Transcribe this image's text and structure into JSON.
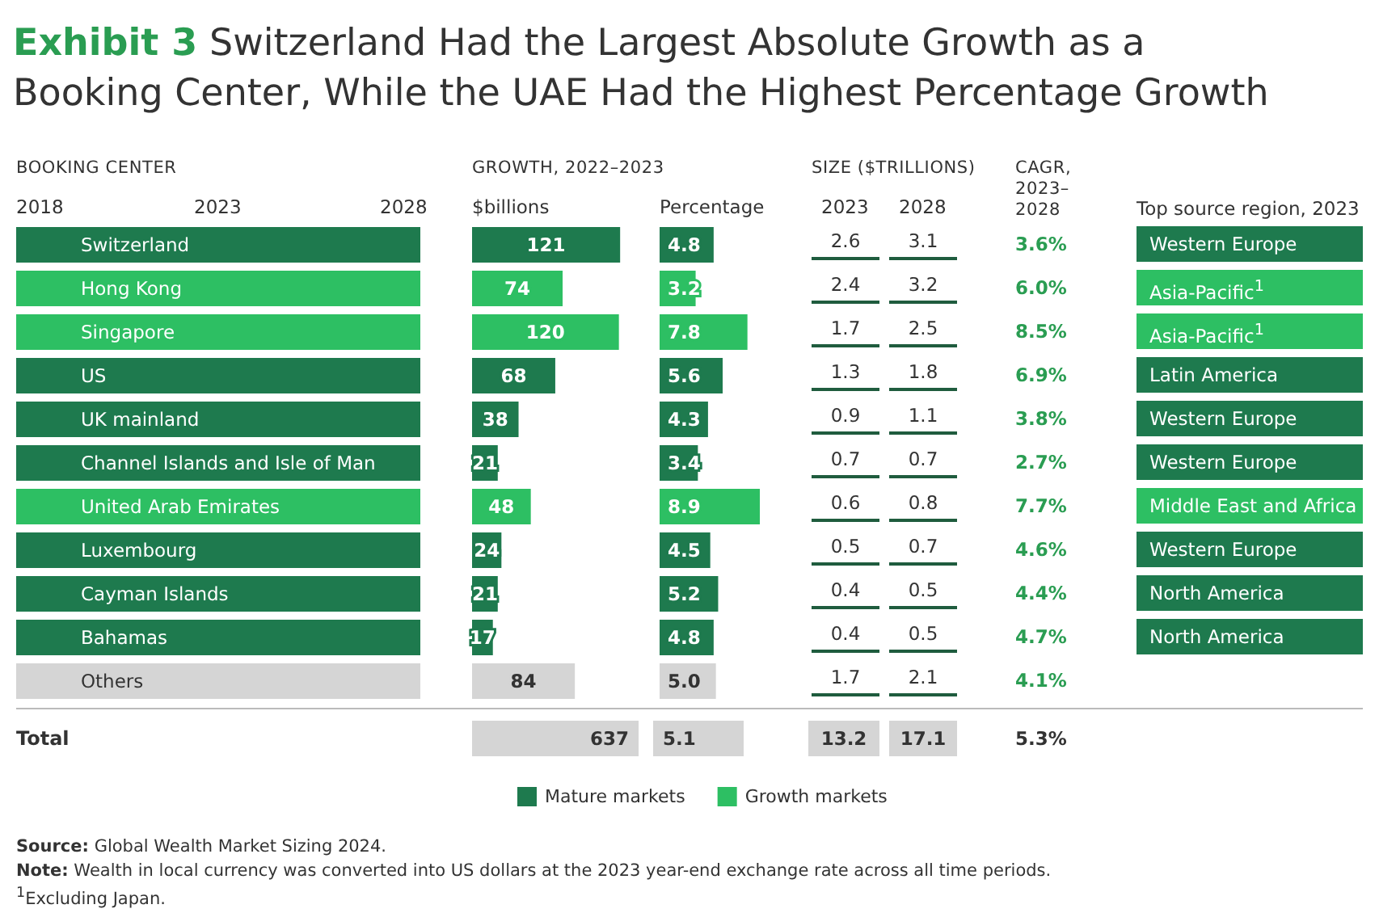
{
  "chart_data": [
    {
      "type": "bar",
      "orientation": "horizontal",
      "stacked": true,
      "title": "Exhibit 3 Switzerland Had the Largest Absolute Growth as a Booking Center, While the UAE Had the Highest Percentage Growth",
      "xlabel": "$billions",
      "annotations": [
        "BOOKING CENTER",
        "2018",
        "2023",
        "2028",
        "GROWTH, 2022–2023"
      ],
      "categories": [
        "Switzerland",
        "Hong Kong",
        "Singapore",
        "US",
        "UK mainland",
        "Channel Islands and Isle of Man",
        "United Arab Emirates",
        "Luxembourg",
        "Cayman Islands",
        "Bahamas",
        "Others"
      ],
      "series": [
        {
          "name": "Mature markets",
          "color": "#1e7a4e",
          "values": [
            121,
            null,
            null,
            68,
            38,
            21,
            null,
            24,
            21,
            17,
            null
          ]
        },
        {
          "name": "Growth markets",
          "color": "#2dbf63",
          "values": [
            null,
            74,
            120,
            null,
            null,
            null,
            48,
            null,
            null,
            null,
            null
          ]
        },
        {
          "color": "#d5d5d5",
          "values": [
            null,
            null,
            null,
            null,
            null,
            null,
            null,
            null,
            null,
            null,
            84
          ]
        }
      ],
      "data_labels": true,
      "legend": "bottom",
      "tick_labels": "y"
    },
    {
      "type": "bar",
      "orientation": "horizontal",
      "xlabel": "Percentage",
      "categories": [
        null,
        null,
        null,
        null,
        null,
        null,
        null,
        null,
        null,
        null,
        null
      ],
      "values": [
        4.8,
        3.2,
        7.8,
        5.6,
        4.3,
        3.4,
        8.9,
        4.5,
        5.2,
        4.8,
        5.0
      ],
      "value_labels": [
        "4.8",
        "3.2",
        "7.8",
        "5.6",
        "4.3",
        "3.4",
        "8.9",
        "4.5",
        "5.2",
        "4.8",
        "5.0"
      ],
      "colors": [
        "#1e7a4e",
        "#2dbf63",
        "#2dbf63",
        "#1e7a4e",
        "#1e7a4e",
        "#1e7a4e",
        "#2dbf63",
        "#1e7a4e",
        "#1e7a4e",
        "#1e7a4e",
        "#d5d5d5"
      ],
      "tick_labels": false
    },
    {
      "type": "other",
      "title": "SIZE ($TRILLIONS)",
      "xlabel": "2023",
      "values": [
        2.6,
        2.4,
        1.7,
        1.3,
        0.9,
        0.7,
        0.6,
        0.5,
        0.4,
        0.4,
        1.7
      ],
      "value_labels": [
        "2.6",
        "2.4",
        "1.7",
        "1.3",
        "0.9",
        "0.7",
        "0.6",
        "0.5",
        "0.4",
        "0.4",
        "1.7"
      ]
    },
    {
      "type": "other",
      "xlabel": "2028",
      "values": [
        3.1,
        3.2,
        2.5,
        1.8,
        1.1,
        0.7,
        0.8,
        0.7,
        0.5,
        0.5,
        2.1
      ],
      "value_labels": [
        "3.1",
        "3.2",
        "2.5",
        "1.8",
        "1.1",
        "0.7",
        "0.8",
        "0.7",
        "0.5",
        "0.5",
        "2.1"
      ]
    },
    {
      "type": "other",
      "title": "CAGR, 2023–2028",
      "values": [
        3.6,
        6.0,
        8.5,
        6.9,
        3.8,
        2.7,
        7.7,
        4.6,
        4.4,
        4.7,
        4.1
      ],
      "value_labels": [
        "3.6%",
        "6.0%",
        "8.5%",
        "6.9%",
        "3.8%",
        "2.7%",
        "7.7%",
        "4.6%",
        "4.4%",
        "4.7%",
        "4.1%"
      ],
      "color": "#2a9d52"
    },
    {
      "type": "other",
      "title": "Top source region, 2023",
      "categories": [
        "Western Europe",
        "Asia-Pacific$^{1}$",
        "Asia-Pacific$^{1}$",
        "Latin America",
        "Western Europe",
        "Western Europe",
        "Middle East and Africa",
        "Western Europe",
        "North America",
        "North America",
        null
      ],
      "colors": [
        "#1e7a4e",
        "#2dbf63",
        "#2dbf63",
        "#1e7a4e",
        "#1e7a4e",
        "#1e7a4e",
        "#2dbf63",
        "#1e7a4e",
        "#1e7a4e",
        "#1e7a4e",
        null
      ]
    },
    {
      "type": "other",
      "title": "Total",
      "values": [
        637,
        5.1,
        13.2,
        17.1,
        5.3
      ],
      "value_labels": [
        "637",
        "5.1",
        "13.2",
        "17.1",
        "5.3%"
      ],
      "color": "#d5d5d5",
      "annotations": [
        "Source: Global Wealth Market Sizing 2024.",
        "Note: Wealth in local currency was converted into US dollars at the 2023 year-end exchange rate across all time periods.",
        "$^{1}$Excluding Japan."
      ]
    }
  ]
}
